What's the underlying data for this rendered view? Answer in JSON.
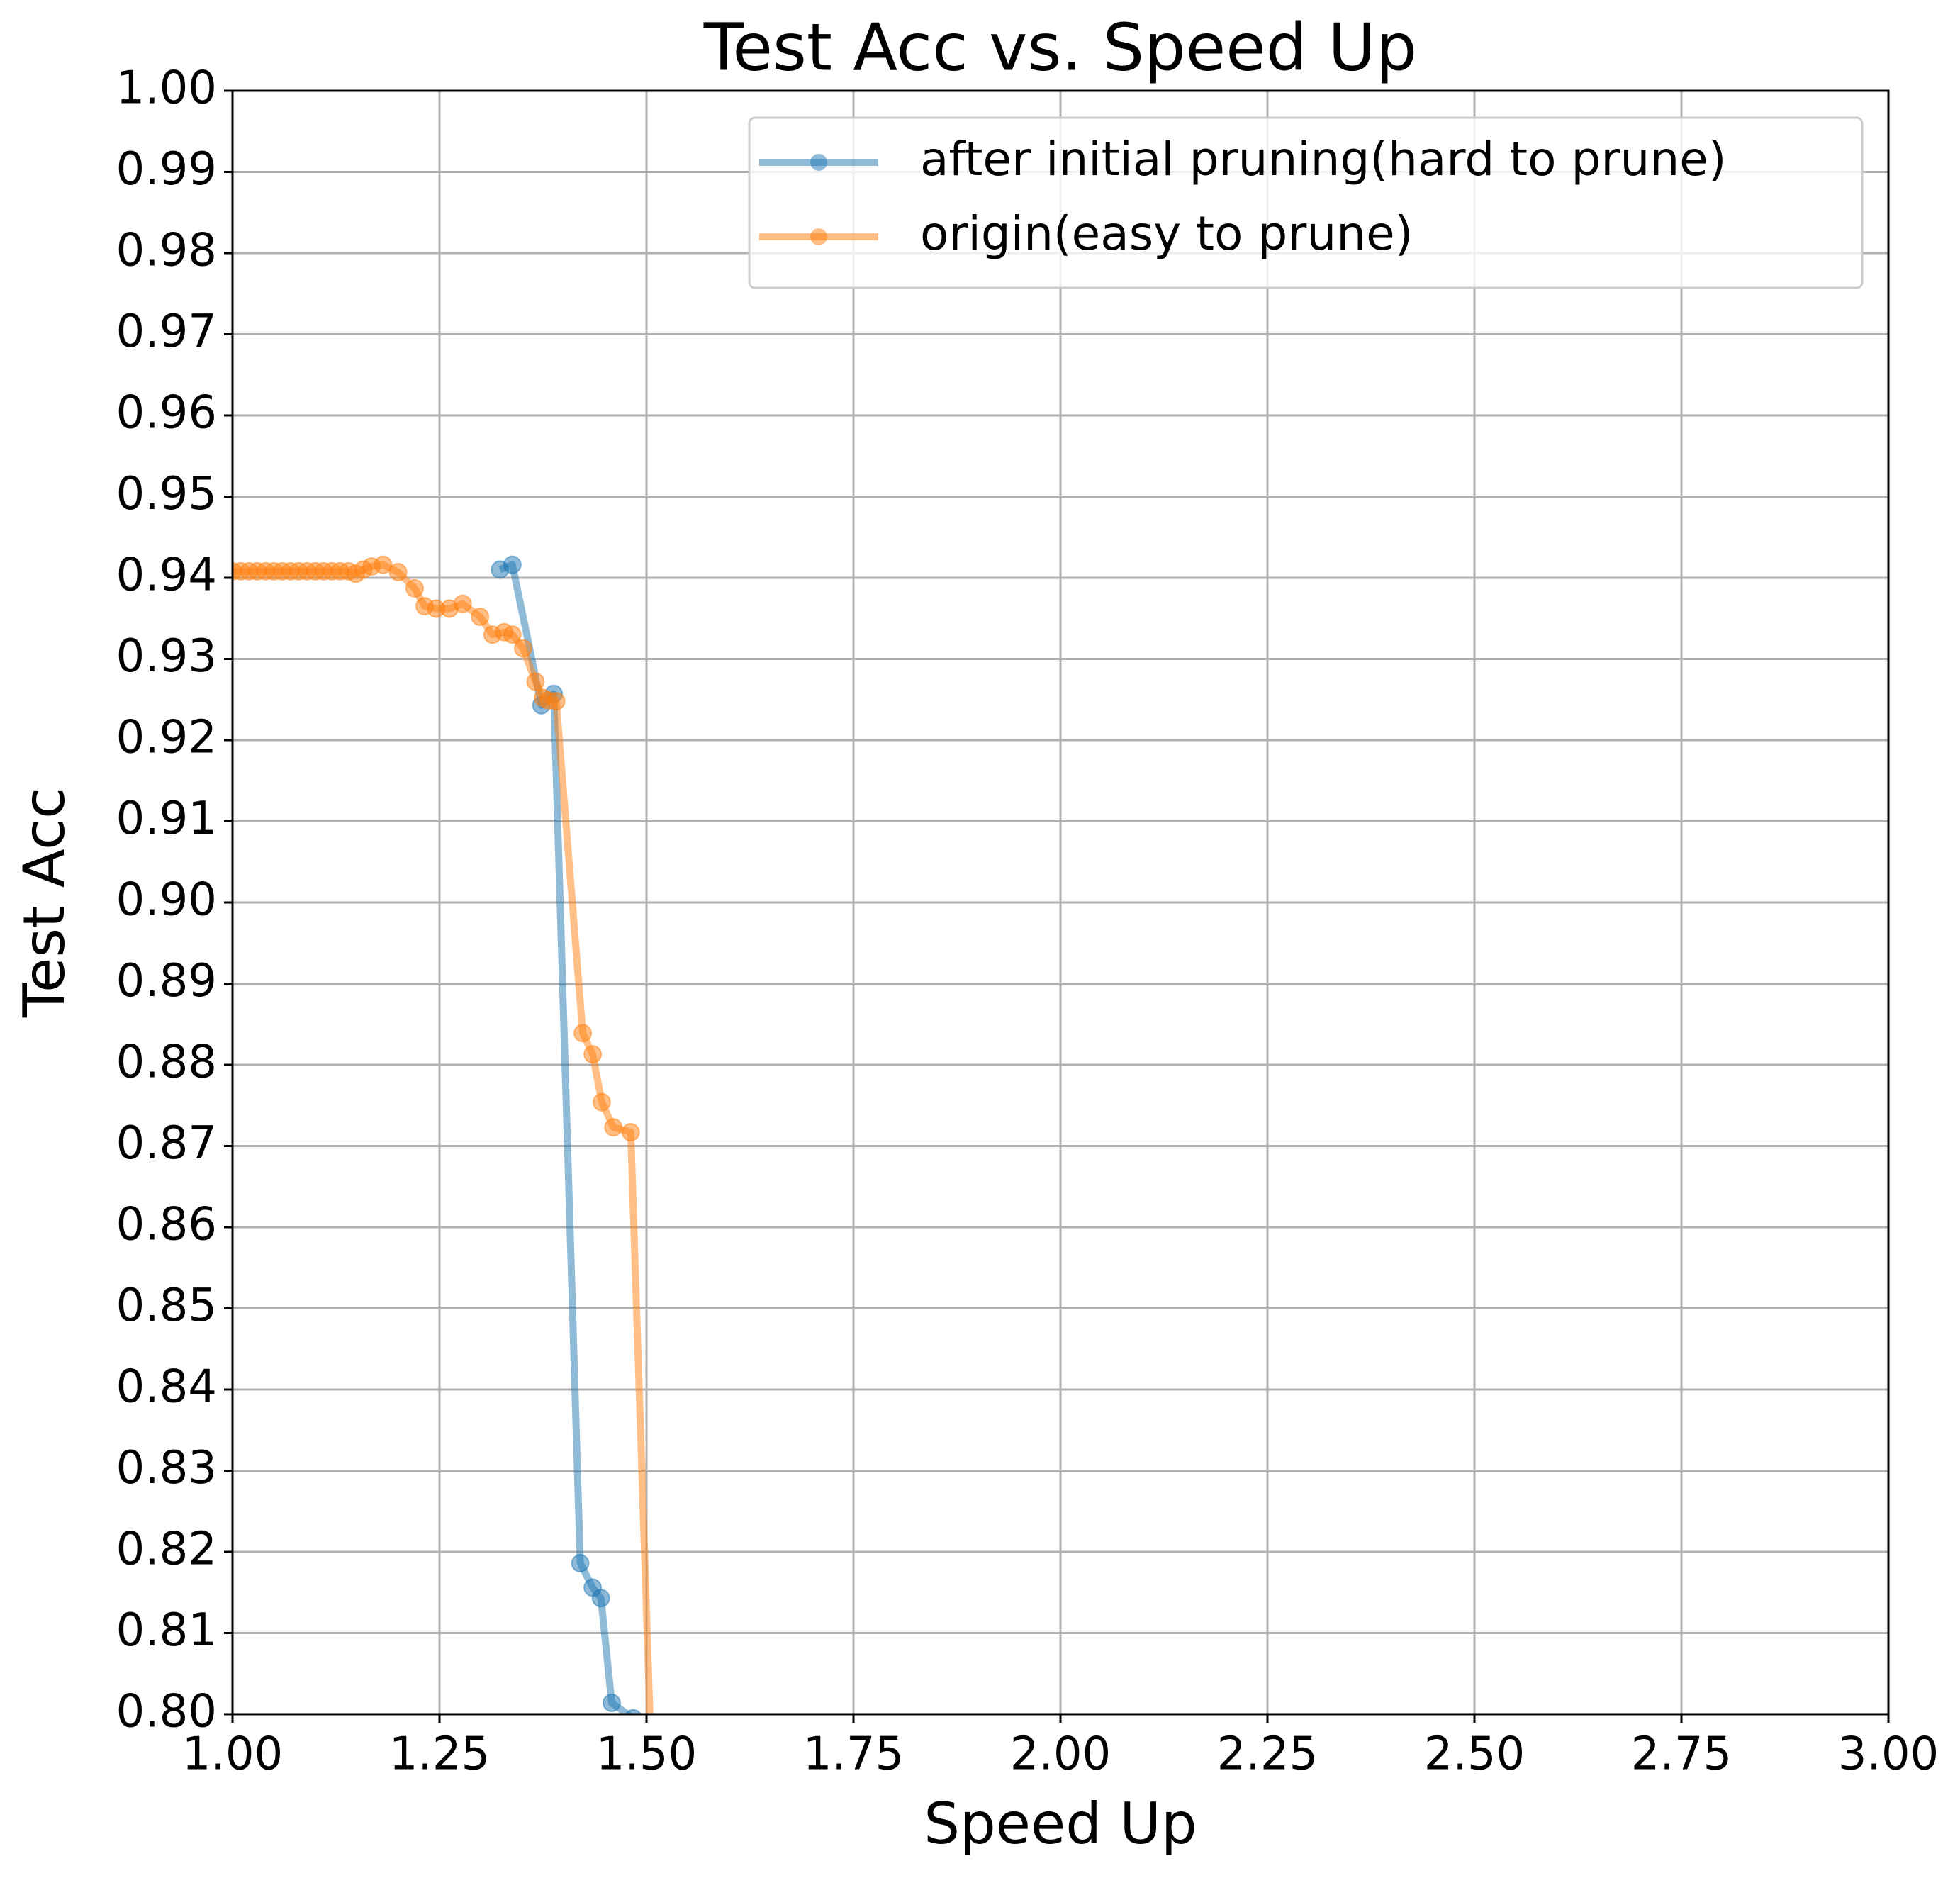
{
  "chart_data": {
    "type": "line",
    "title": "Test Acc vs. Speed Up",
    "x_label": "Speed Up",
    "y_label": "Test Acc",
    "xlim": [
      1.0,
      3.0
    ],
    "xticks": [
      {
        "value": 1.0,
        "label": "1.00"
      },
      1.25,
      {
        "value": 1.5,
        "label": "1.50"
      },
      1.75,
      {
        "value": 2.0,
        "label": "2.00"
      },
      2.25,
      {
        "value": 2.5,
        "label": "2.50"
      },
      2.75,
      {
        "value": 3.0,
        "label": "3.00"
      }
    ],
    "ylim": [
      0.8,
      1.0
    ],
    "yticks": [
      {
        "value": 0.8,
        "label": "0.80"
      },
      0.81,
      0.82,
      0.83,
      0.84,
      0.85,
      0.86,
      0.87,
      0.88,
      0.89,
      {
        "value": 0.9,
        "label": "0.90"
      },
      0.91,
      0.92,
      0.93,
      0.94,
      0.95,
      0.96,
      0.97,
      0.98,
      0.99,
      {
        "value": 1.0,
        "label": "1.00"
      }
    ],
    "grid": true,
    "legend": "upper right",
    "series": [
      {
        "name": "after initial pruning(hard to prune)",
        "color": "#1f77b4",
        "x": [
          1.323,
          1.338,
          1.373,
          1.388,
          1.42,
          1.435,
          1.445,
          1.458,
          1.484
        ],
        "values": [
          0.941,
          0.9416,
          0.9243,
          0.9257,
          0.8186,
          0.8156,
          0.8143,
          0.8014,
          0.7995
        ]
      },
      {
        "name": "origin(easy to prune)",
        "color": "#ff7f0e",
        "x": [
          1.0,
          1.01,
          1.02,
          1.03,
          1.04,
          1.05,
          1.06,
          1.07,
          1.08,
          1.09,
          1.1,
          1.11,
          1.12,
          1.13,
          1.14,
          1.149,
          1.158,
          1.168,
          1.182,
          1.2,
          1.22,
          1.232,
          1.246,
          1.262,
          1.278,
          1.299,
          1.314,
          1.328,
          1.338,
          1.351,
          1.366,
          1.375,
          1.382,
          1.391,
          1.423,
          1.435,
          1.446,
          1.46,
          1.481,
          1.505
        ],
        "values": [
          0.9408,
          0.9408,
          0.9408,
          0.9408,
          0.9408,
          0.9408,
          0.9408,
          0.9408,
          0.9408,
          0.9408,
          0.9408,
          0.9408,
          0.9408,
          0.9408,
          0.9408,
          0.9405,
          0.941,
          0.9414,
          0.9416,
          0.9407,
          0.9387,
          0.9365,
          0.9362,
          0.9362,
          0.9368,
          0.9352,
          0.933,
          0.9333,
          0.933,
          0.9313,
          0.9272,
          0.9252,
          0.9249,
          0.9248,
          0.8839,
          0.8813,
          0.8754,
          0.8723,
          0.8717,
          0.797
        ]
      }
    ]
  }
}
